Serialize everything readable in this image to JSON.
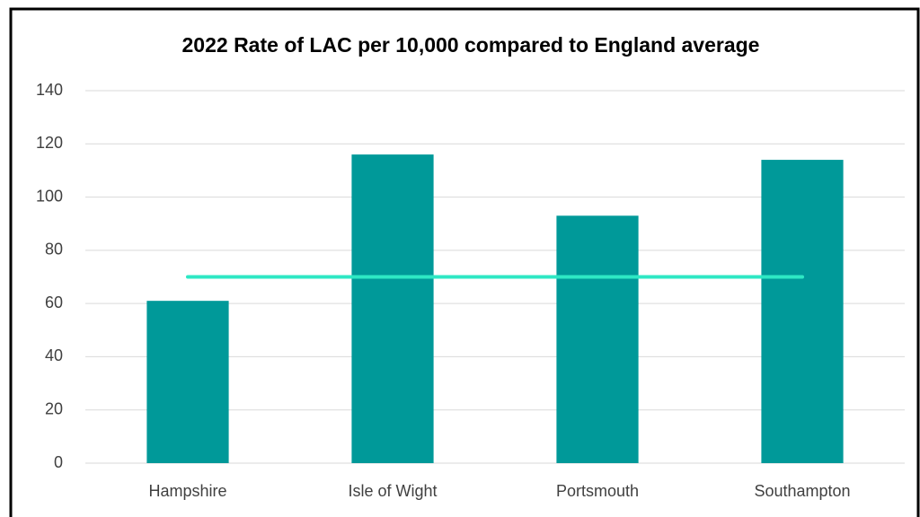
{
  "chart_data": {
    "type": "bar",
    "title": "2022 Rate of LAC per 10,000 compared to England average",
    "categories": [
      "Hampshire",
      "Isle of Wight",
      "Portsmouth",
      "Southampton"
    ],
    "series": [
      {
        "type": "bar",
        "color": "#009999",
        "values": [
          61,
          116,
          93,
          114
        ]
      },
      {
        "type": "line",
        "color": "#2ee8c4",
        "values": [
          70,
          70,
          70,
          70
        ]
      }
    ],
    "ylim": [
      0,
      140
    ],
    "yticks": [
      0,
      20,
      40,
      60,
      80,
      100,
      120,
      140
    ],
    "grid": true
  }
}
